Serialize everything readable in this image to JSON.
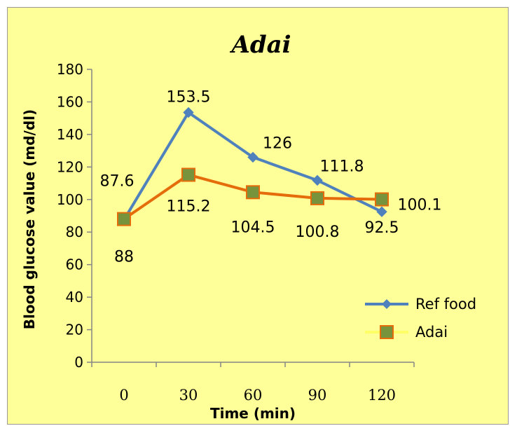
{
  "chart_data": {
    "type": "line",
    "title": "Adai",
    "xlabel": "Time (min)",
    "ylabel": "Blood glucose value (md/dl)",
    "categories": [
      "0",
      "30",
      "60",
      "90",
      "120"
    ],
    "ylim": [
      0,
      180
    ],
    "yticks": [
      "0",
      "20",
      "40",
      "60",
      "80",
      "100",
      "120",
      "140",
      "160",
      "180"
    ],
    "grid": false,
    "legend_position": "bottom-right",
    "series": [
      {
        "name": "Ref food",
        "values": [
          87.6,
          153.5,
          126,
          111.8,
          92.5
        ],
        "labels": [
          "87.6",
          "153.5",
          "126",
          "111.8",
          "92.5"
        ],
        "color": "#4f81bd",
        "marker": "diamond"
      },
      {
        "name": "Adai",
        "values": [
          88,
          115.2,
          104.5,
          100.8,
          100.1
        ],
        "labels": [
          "88",
          "115.2",
          "104.5",
          "100.8",
          "100.1"
        ],
        "color": "#e46c0a",
        "marker": "square",
        "marker_color": "#77933c"
      }
    ]
  },
  "colors": {
    "background": "#ffff99",
    "axis": "#868686"
  }
}
